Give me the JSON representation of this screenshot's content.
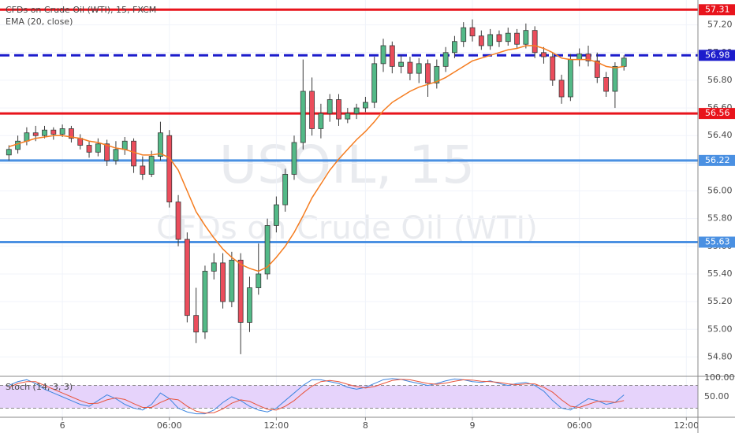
{
  "chart_data": [
    {
      "type": "candlestick",
      "title": "CFDs on Crude Oil (WTI), 15, FXCM",
      "watermark": [
        "USOIL, 15",
        "CFDs on Crude Oil (WTI)"
      ],
      "grid": true,
      "up_color": "#53b987",
      "down_color": "#eb4d5c",
      "xlim": [
        0,
        78.3
      ],
      "xticks": [
        {
          "value": 7,
          "label": "6"
        },
        {
          "value": 19,
          "label": "06:00"
        },
        {
          "value": 31,
          "label": "12:00"
        },
        {
          "value": 41,
          "label": "8"
        },
        {
          "value": 53,
          "label": "9"
        },
        {
          "value": 65,
          "label": "06:00"
        },
        {
          "value": 77,
          "label": "12:00"
        }
      ],
      "ylim": [
        54.66,
        57.38
      ],
      "yticks": [
        {
          "value": 54.8,
          "label": "54.80"
        },
        {
          "value": 55.0,
          "label": "55.00"
        },
        {
          "value": 55.2,
          "label": "55.20"
        },
        {
          "value": 55.4,
          "label": "55.40"
        },
        {
          "value": 55.6,
          "label": "55.60"
        },
        {
          "value": 55.8,
          "label": "55.80"
        },
        {
          "value": 56.0,
          "label": "56.00"
        },
        {
          "value": 56.2,
          "label": "56.20"
        },
        {
          "value": 56.4,
          "label": "56.40"
        },
        {
          "value": 56.6,
          "label": "56.60"
        },
        {
          "value": 56.8,
          "label": "56.80"
        },
        {
          "value": 57.0,
          "label": "57.00"
        },
        {
          "value": 57.2,
          "label": "57.20"
        }
      ],
      "x": [
        1,
        2,
        3,
        4,
        5,
        6,
        7,
        8,
        9,
        10,
        11,
        12,
        13,
        14,
        15,
        16,
        17,
        18,
        19,
        20,
        21,
        22,
        23,
        24,
        25,
        26,
        27,
        28,
        29,
        30,
        31,
        32,
        33,
        34,
        35,
        36,
        37,
        38,
        39,
        40,
        41,
        42,
        43,
        44,
        45,
        46,
        47,
        48,
        49,
        50,
        51,
        52,
        53,
        54,
        55,
        56,
        57,
        58,
        59,
        60,
        61,
        62,
        63,
        64,
        65,
        66,
        67,
        68,
        69,
        70
      ],
      "open": [
        56.26,
        56.3,
        56.36,
        56.42,
        56.4,
        56.44,
        56.41,
        56.45,
        56.38,
        56.33,
        56.28,
        56.34,
        56.22,
        56.3,
        56.36,
        56.18,
        56.12,
        56.25,
        56.4,
        55.92,
        55.65,
        55.1,
        54.98,
        55.42,
        55.48,
        55.2,
        55.5,
        55.05,
        55.3,
        55.4,
        55.75,
        55.9,
        56.12,
        56.35,
        56.72,
        56.45,
        56.56,
        56.66,
        56.52,
        56.56,
        56.6,
        56.64,
        56.92,
        57.05,
        56.9,
        56.93,
        56.85,
        56.92,
        56.78,
        56.9,
        57.0,
        57.08,
        57.18,
        57.12,
        57.05,
        57.13,
        57.08,
        57.14,
        57.06,
        57.16,
        57.0,
        56.97,
        56.8,
        56.68,
        56.95,
        56.99,
        56.94,
        56.82,
        56.72,
        56.9
      ],
      "high": [
        56.33,
        56.4,
        56.46,
        56.47,
        56.47,
        56.46,
        56.48,
        56.47,
        56.41,
        56.36,
        56.38,
        56.37,
        56.36,
        56.39,
        56.38,
        56.25,
        56.29,
        56.5,
        56.44,
        55.97,
        55.7,
        55.3,
        55.46,
        55.55,
        55.55,
        55.56,
        55.55,
        55.38,
        55.62,
        55.8,
        55.96,
        56.16,
        56.4,
        56.95,
        56.82,
        56.63,
        56.7,
        56.7,
        56.6,
        56.63,
        56.68,
        56.97,
        57.1,
        57.08,
        56.98,
        56.97,
        56.96,
        56.95,
        56.95,
        57.04,
        57.12,
        57.22,
        57.24,
        57.16,
        57.17,
        57.16,
        57.18,
        57.17,
        57.21,
        57.19,
        57.04,
        57.0,
        56.84,
        56.99,
        57.03,
        57.05,
        57.0,
        56.86,
        56.93,
        56.98
      ],
      "low": [
        56.22,
        56.27,
        56.33,
        56.36,
        56.38,
        56.37,
        56.39,
        56.35,
        56.3,
        56.24,
        56.25,
        56.18,
        56.19,
        56.26,
        56.13,
        56.08,
        56.1,
        56.22,
        55.88,
        55.6,
        55.05,
        54.9,
        54.93,
        55.36,
        55.15,
        55.16,
        54.82,
        54.98,
        55.25,
        55.36,
        55.7,
        55.85,
        56.08,
        56.3,
        56.4,
        56.38,
        56.5,
        56.47,
        56.49,
        56.52,
        56.57,
        56.6,
        56.86,
        56.85,
        56.85,
        56.8,
        56.78,
        56.68,
        56.74,
        56.86,
        56.96,
        57.04,
        57.08,
        57.02,
        57.02,
        57.04,
        57.05,
        57.03,
        57.03,
        56.96,
        56.92,
        56.76,
        56.63,
        56.65,
        56.9,
        56.9,
        56.78,
        56.68,
        56.6,
        56.87
      ],
      "close": [
        56.3,
        56.36,
        56.42,
        56.4,
        56.44,
        56.41,
        56.45,
        56.38,
        56.33,
        56.28,
        56.34,
        56.22,
        56.3,
        56.36,
        56.18,
        56.12,
        56.25,
        56.42,
        55.92,
        55.65,
        55.1,
        54.98,
        55.42,
        55.48,
        55.2,
        55.5,
        55.05,
        55.3,
        55.4,
        55.75,
        55.9,
        56.12,
        56.35,
        56.72,
        56.45,
        56.56,
        56.66,
        56.52,
        56.56,
        56.6,
        56.64,
        56.92,
        57.05,
        56.9,
        56.93,
        56.85,
        56.92,
        56.78,
        56.9,
        57.0,
        57.08,
        57.18,
        57.12,
        57.05,
        57.13,
        57.08,
        57.14,
        57.06,
        57.16,
        57.0,
        56.97,
        56.8,
        56.68,
        56.95,
        56.99,
        56.94,
        56.82,
        56.72,
        56.9,
        56.96
      ],
      "ema": {
        "name": "EMA (20, close)",
        "color": "#f57c1f",
        "values": [
          56.32,
          56.34,
          56.36,
          56.38,
          56.39,
          56.4,
          56.4,
          56.39,
          56.38,
          56.36,
          56.35,
          56.33,
          56.31,
          56.3,
          56.28,
          56.26,
          56.26,
          56.27,
          56.24,
          56.15,
          56.0,
          55.85,
          55.75,
          55.66,
          55.58,
          55.52,
          55.47,
          55.44,
          55.42,
          55.45,
          55.52,
          55.6,
          55.7,
          55.82,
          55.95,
          56.05,
          56.15,
          56.23,
          56.3,
          56.37,
          56.43,
          56.5,
          56.58,
          56.64,
          56.68,
          56.72,
          56.75,
          56.77,
          56.79,
          56.82,
          56.86,
          56.9,
          56.94,
          56.96,
          56.98,
          57.0,
          57.02,
          57.03,
          57.05,
          57.05,
          57.03,
          57.0,
          56.96,
          56.95,
          56.95,
          56.95,
          56.93,
          56.9,
          56.89,
          56.9
        ]
      },
      "levels": [
        {
          "value": 57.31,
          "color": "#e8141c",
          "style": "solid"
        },
        {
          "value": 56.98,
          "color": "#1c1ccc",
          "style": "dashed"
        },
        {
          "value": 56.56,
          "color": "#e8141c",
          "style": "solid"
        },
        {
          "value": 56.22,
          "color": "#4a90e2",
          "style": "solid"
        },
        {
          "value": 55.63,
          "color": "#4a90e2",
          "style": "solid"
        }
      ]
    },
    {
      "type": "line",
      "title": "Stoch (14, 3, 3)",
      "ylim": [
        -4,
        104
      ],
      "yticks": [
        {
          "value": 100,
          "label": "100.00"
        },
        {
          "value": 50,
          "label": "50.00"
        }
      ],
      "bands": [
        80,
        20
      ],
      "band_color": "#e6d3fb",
      "series": [
        {
          "color": "#3d85e0",
          "values": [
            80,
            90,
            95,
            85,
            70,
            60,
            50,
            40,
            30,
            25,
            40,
            55,
            45,
            30,
            20,
            15,
            30,
            60,
            45,
            20,
            10,
            5,
            5,
            15,
            35,
            50,
            40,
            25,
            15,
            10,
            20,
            40,
            60,
            80,
            95,
            95,
            90,
            85,
            75,
            70,
            75,
            85,
            95,
            98,
            96,
            90,
            85,
            80,
            85,
            92,
            97,
            95,
            90,
            88,
            92,
            85,
            80,
            85,
            88,
            80,
            65,
            40,
            20,
            15,
            30,
            45,
            40,
            30,
            35,
            55
          ]
        },
        {
          "color": "#e8533b",
          "values": [
            75,
            85,
            90,
            90,
            80,
            70,
            60,
            50,
            40,
            32,
            33,
            42,
            47,
            43,
            32,
            22,
            22,
            35,
            45,
            42,
            25,
            12,
            7,
            8,
            18,
            33,
            42,
            38,
            27,
            17,
            15,
            25,
            40,
            60,
            78,
            90,
            93,
            90,
            83,
            77,
            73,
            77,
            85,
            93,
            96,
            95,
            90,
            85,
            83,
            86,
            91,
            95,
            94,
            91,
            90,
            88,
            84,
            82,
            84,
            84,
            75,
            62,
            42,
            25,
            22,
            30,
            38,
            38,
            35,
            40
          ]
        }
      ]
    }
  ]
}
